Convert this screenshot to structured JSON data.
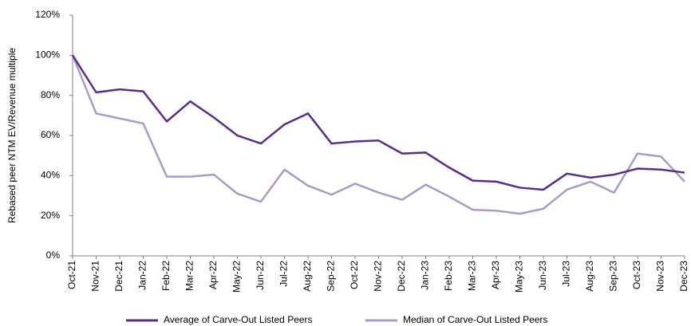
{
  "chart_data": {
    "type": "line",
    "y_label": "Rebased peer NTM EV/Revenue multiple",
    "categories": [
      "Oct-21",
      "Nov-21",
      "Dec-21",
      "Jan-22",
      "Feb-22",
      "Mar-22",
      "Apr-22",
      "May-22",
      "Jun-22",
      "Jul-22",
      "Aug-22",
      "Sep-22",
      "Oct-22",
      "Nov-22",
      "Dec-22",
      "Jan-23",
      "Feb-23",
      "Mar-23",
      "Apr-23",
      "May-23",
      "Jun-23",
      "Jul-23",
      "Aug-23",
      "Sep-23",
      "Oct-23",
      "Nov-23",
      "Dec-23"
    ],
    "series": [
      {
        "name": "Average of Carve-Out Listed Peers",
        "color": "#5b2d86",
        "values": [
          100,
          81.5,
          83,
          82,
          67,
          77,
          69,
          60,
          56,
          65.5,
          71,
          56,
          57,
          57.5,
          51,
          51.5,
          44,
          37.5,
          37,
          34,
          33,
          41,
          39,
          40.5,
          43.5,
          43,
          41.5
        ]
      },
      {
        "name": "Median of Carve-Out Listed Peers",
        "color": "#a99bc9",
        "values": [
          100,
          71,
          68.5,
          66,
          39.5,
          39.5,
          40.5,
          31,
          27,
          43,
          35,
          30.5,
          36,
          31.5,
          28,
          35.5,
          29.5,
          23,
          22.5,
          21,
          23.5,
          33,
          37,
          31.5,
          51,
          49.5,
          37
        ]
      }
    ],
    "ylim": [
      0,
      120
    ],
    "yticks": [
      {
        "value": 0,
        "label": "0%"
      },
      {
        "value": 20,
        "label": "20%"
      },
      {
        "value": 40,
        "label": "40%"
      },
      {
        "value": 60,
        "label": "60%"
      },
      {
        "value": 80,
        "label": "80%"
      },
      {
        "value": 100,
        "label": "100%"
      },
      {
        "value": 120,
        "label": "120%"
      }
    ],
    "grid": false,
    "legend": "bottom"
  }
}
